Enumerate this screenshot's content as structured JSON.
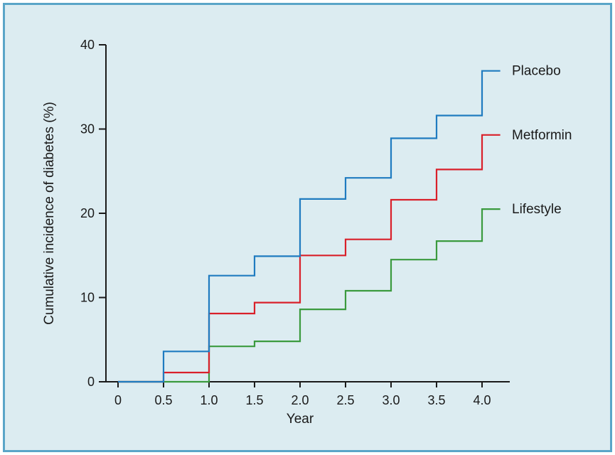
{
  "chart_data": {
    "type": "line",
    "step": true,
    "xlabel": "Year",
    "ylabel": "Cumulative incidence of diabetes (%)",
    "xlim": [
      0,
      4.2
    ],
    "ylim": [
      0,
      40
    ],
    "x_ticks": [
      0,
      0.5,
      1.0,
      1.5,
      2.0,
      2.5,
      3.0,
      3.5,
      4.0
    ],
    "x_tick_labels": [
      "0",
      "0.5",
      "1.0",
      "1.5",
      "2.0",
      "2.5",
      "3.0",
      "3.5",
      "4.0"
    ],
    "y_ticks": [
      0,
      10,
      20,
      30,
      40
    ],
    "y_tick_labels": [
      "0",
      "10",
      "20",
      "30",
      "40"
    ],
    "grid": false,
    "legend": "labels at right end of each line",
    "series": [
      {
        "name": "Placebo",
        "color": "#1f7bc0",
        "x": [
          0,
          0.5,
          1.0,
          1.5,
          2.0,
          2.5,
          3.0,
          3.5,
          4.0,
          4.2
        ],
        "y": [
          0,
          3.6,
          12.6,
          14.9,
          21.7,
          24.2,
          28.9,
          31.6,
          36.9,
          36.9
        ]
      },
      {
        "name": "Metformin",
        "color": "#d9202a",
        "x": [
          0,
          0.5,
          1.0,
          1.5,
          2.0,
          2.5,
          3.0,
          3.5,
          4.0,
          4.2
        ],
        "y": [
          0,
          1.1,
          8.1,
          9.4,
          15.0,
          16.9,
          21.6,
          25.2,
          29.3,
          29.3
        ]
      },
      {
        "name": "Lifestyle",
        "color": "#3a9a3e",
        "x": [
          0,
          0.5,
          1.0,
          1.5,
          2.0,
          2.5,
          3.0,
          3.5,
          4.0,
          4.2
        ],
        "y": [
          0,
          0.0,
          4.2,
          4.8,
          8.6,
          10.8,
          14.5,
          16.7,
          20.5,
          20.5
        ]
      }
    ]
  }
}
